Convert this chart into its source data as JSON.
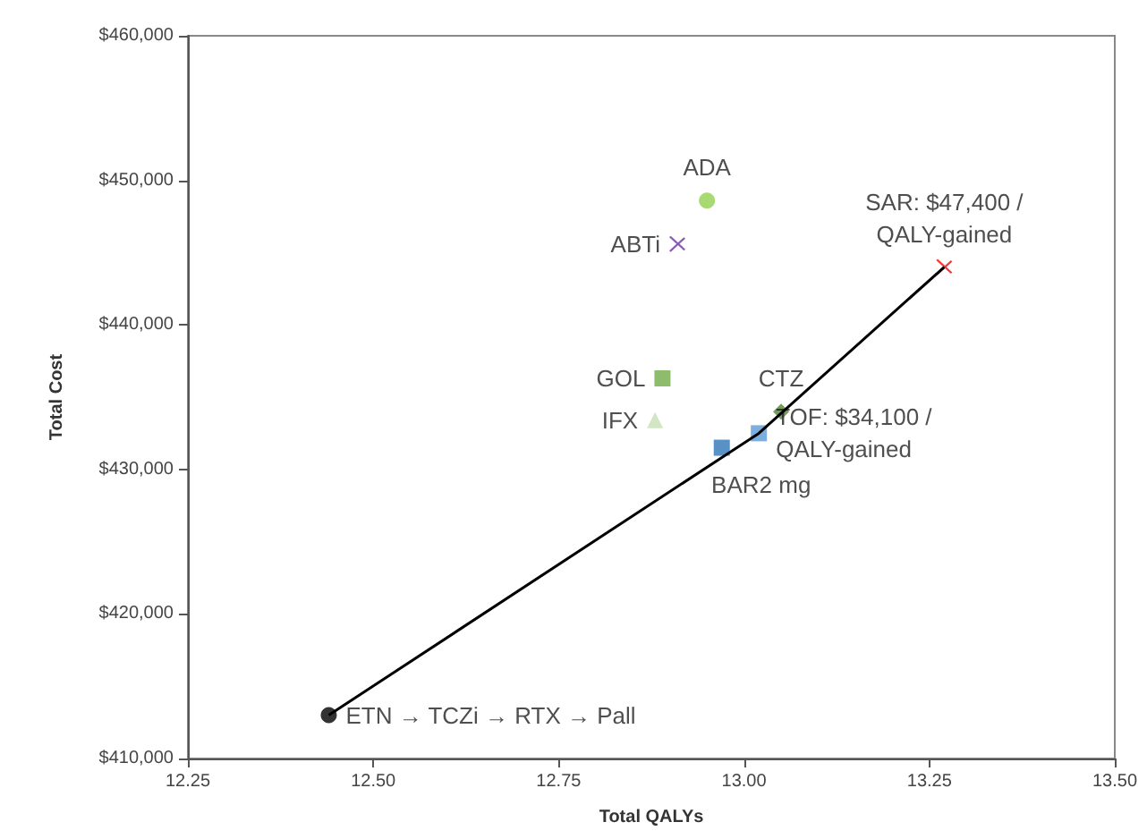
{
  "chart_data": {
    "type": "scatter",
    "xlabel": "Total QALYs",
    "ylabel": "Total Cost",
    "xlim": [
      12.25,
      13.5
    ],
    "xticks": [
      12.25,
      {
        "value": 12.5,
        "label": "12.50"
      },
      12.75,
      {
        "value": 13,
        "label": "13.00"
      },
      13.25,
      {
        "value": 13.5,
        "label": "13.50"
      }
    ],
    "ylim": [
      410000,
      460000
    ],
    "yticks": [
      {
        "value": 410000,
        "label": "$410,000"
      },
      {
        "value": 420000,
        "label": "$420,000"
      },
      {
        "value": 430000,
        "label": "$430,000"
      },
      {
        "value": 440000,
        "label": "$440,000"
      },
      {
        "value": 450000,
        "label": "$450,000"
      },
      {
        "value": 460000,
        "label": "$460,000"
      }
    ],
    "grid": false,
    "legend": false,
    "series": [
      {
        "name": "ETN → TCZi → RTX → Pall",
        "color": "#000000",
        "marker": "circle",
        "x": [
          12.44
        ],
        "values": [
          413000
        ]
      },
      {
        "name": "BAR2 mg",
        "color": "#2e75b6",
        "marker": "square",
        "x": [
          12.97
        ],
        "values": [
          431500
        ]
      },
      {
        "name": "TOF: $34,100 /QALY-gained",
        "color": "#5b9bd5",
        "marker": "square",
        "x": [
          13.02
        ],
        "values": [
          432500
        ]
      },
      {
        "name": "CTZ",
        "color": "#548235",
        "marker": "diamond",
        "x": [
          13.05
        ],
        "values": [
          434000
        ]
      },
      {
        "name": "GOL",
        "color": "#70ad47",
        "marker": "square",
        "x": [
          12.89
        ],
        "values": [
          436300
        ]
      },
      {
        "name": "IFX",
        "color": "#c5e0b4",
        "marker": "triangle",
        "x": [
          12.88
        ],
        "values": [
          433400
        ]
      },
      {
        "name": "ABTi",
        "color": "#7030a0",
        "marker": "cross",
        "x": [
          12.91
        ],
        "values": [
          445600
        ]
      },
      {
        "name": "ADA",
        "color": "#92d050",
        "marker": "circle",
        "x": [
          12.95
        ],
        "values": [
          448600
        ]
      },
      {
        "name": "SAR: $47,400 /QALY-gained",
        "color": "#ff0000",
        "marker": "cross",
        "x": [
          13.27
        ],
        "values": [
          444000
        ]
      },
      {
        "type": "line",
        "color": "#000000",
        "marker": "none",
        "x": [
          12.44,
          13.02,
          13.27
        ],
        "values": [
          413000,
          432500,
          444000
        ]
      }
    ]
  }
}
